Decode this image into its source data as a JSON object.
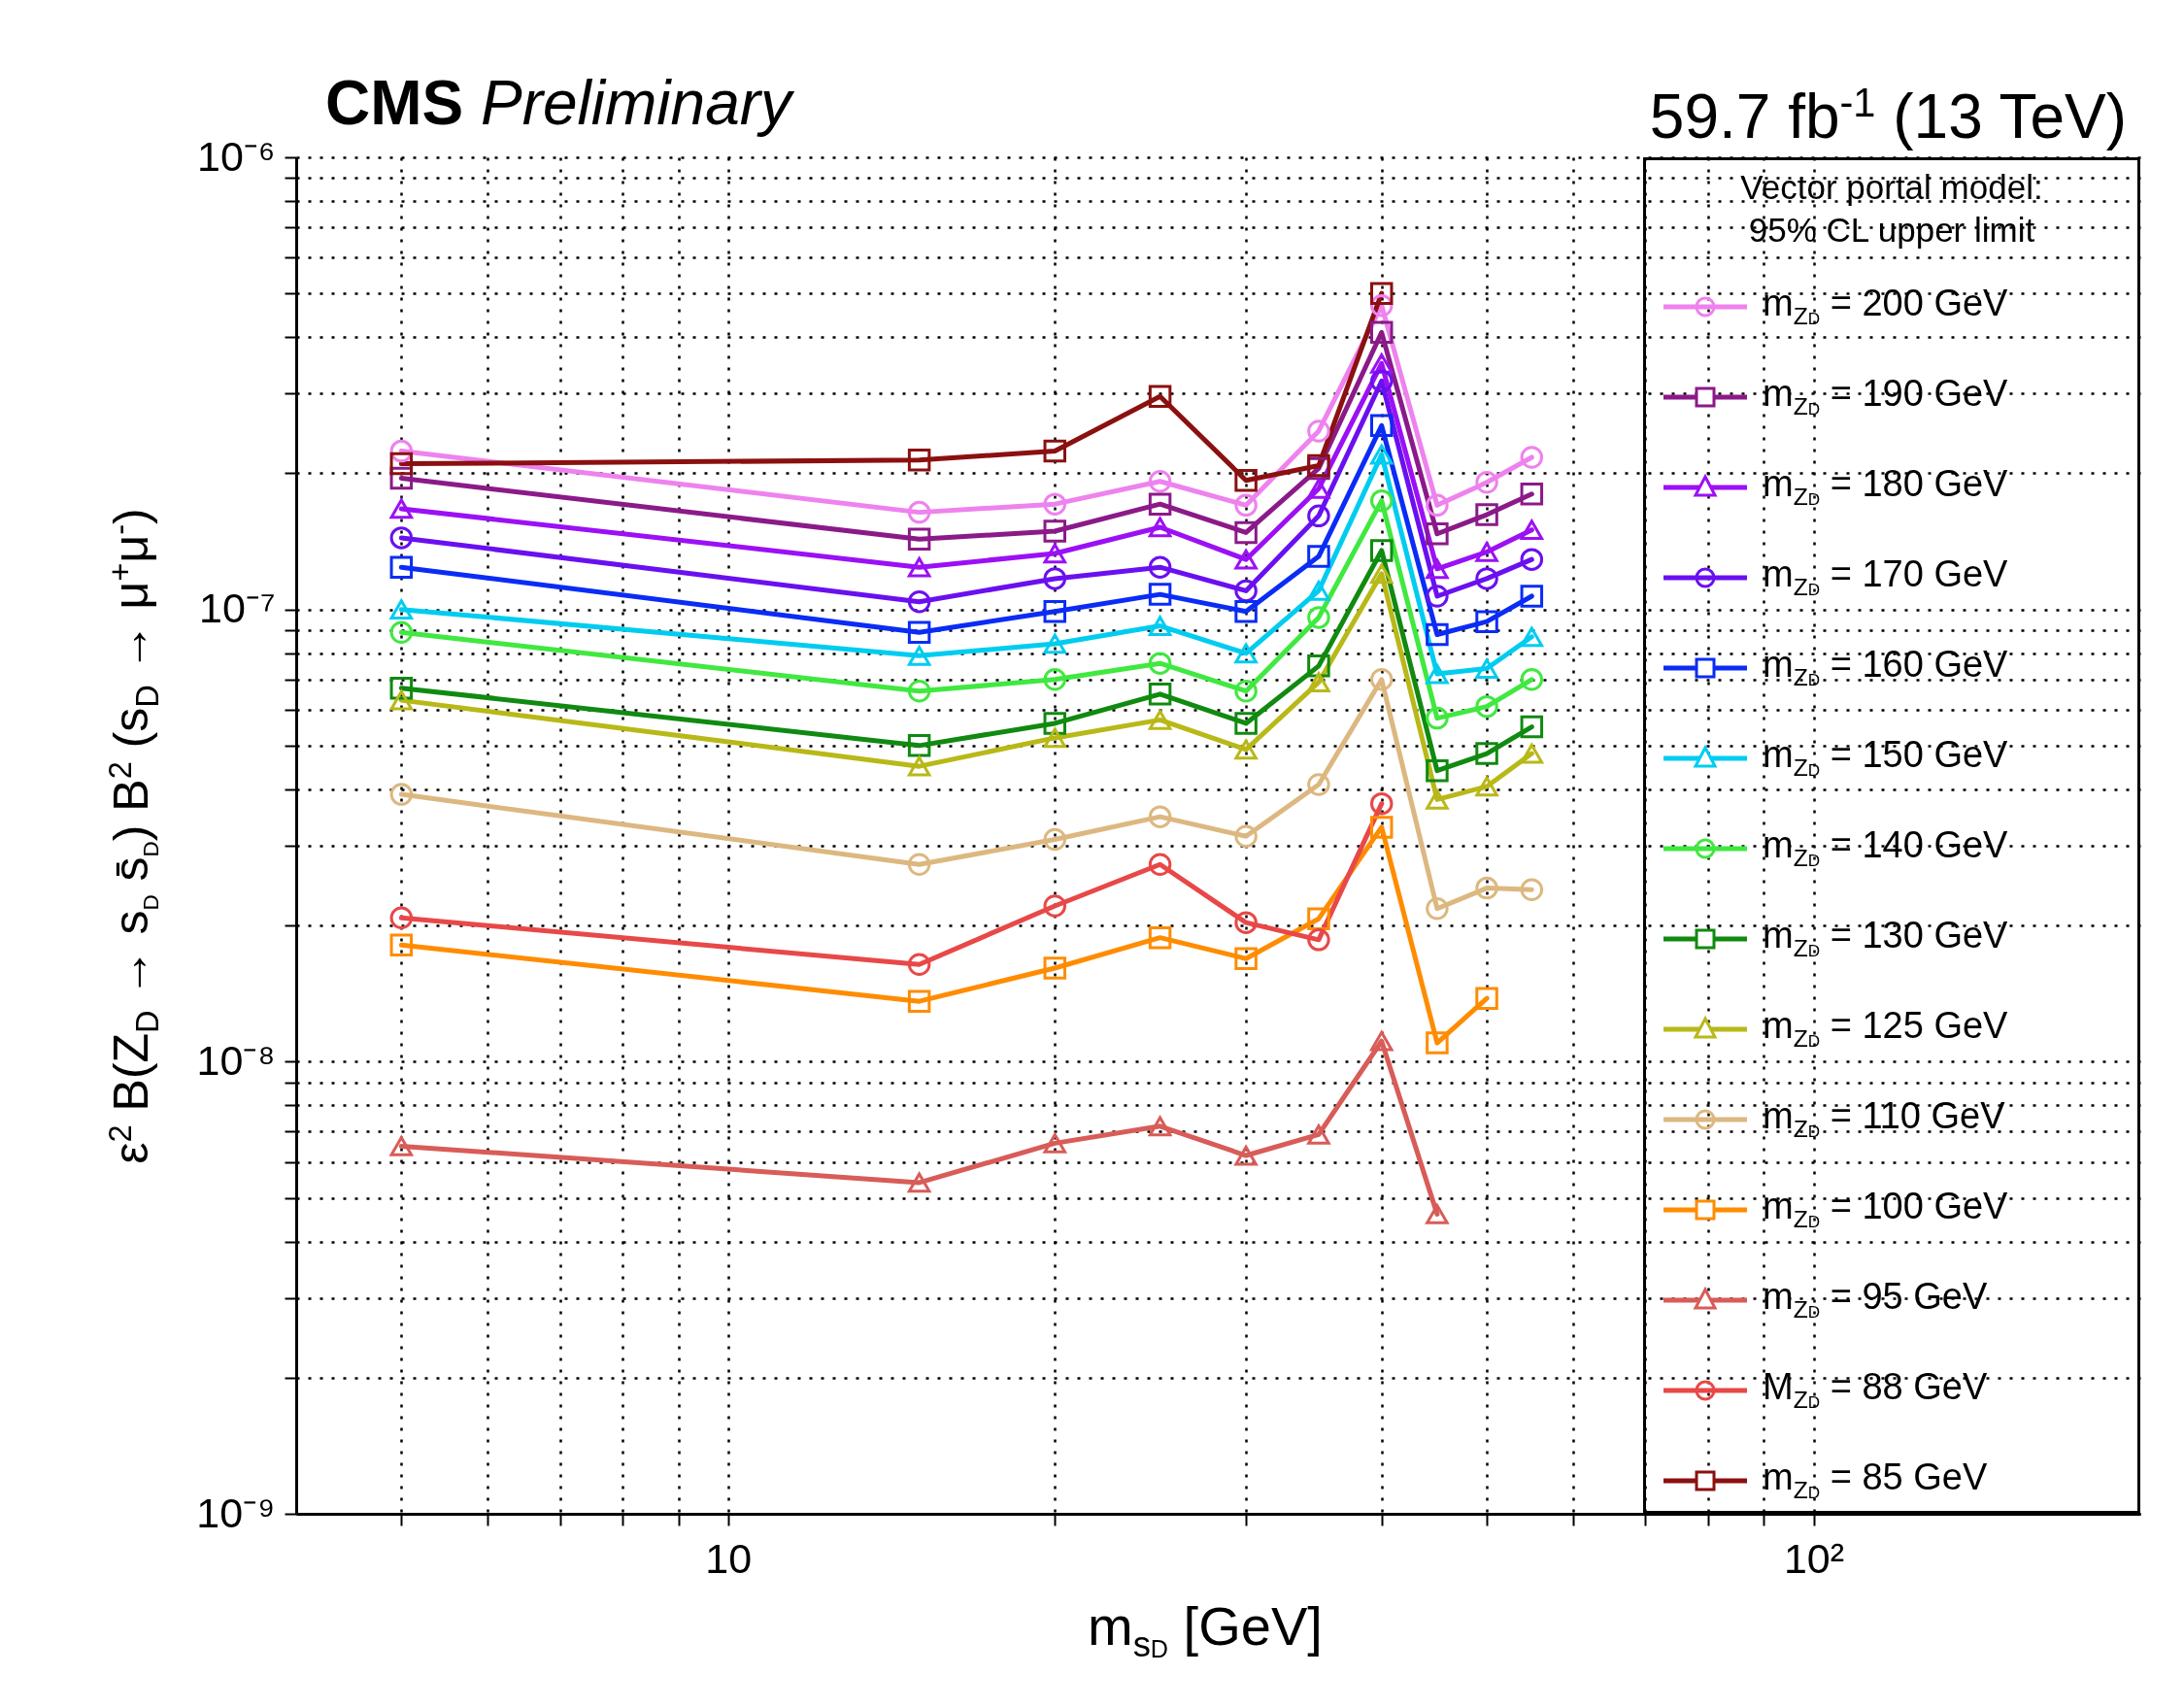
{
  "chart_data": {
    "type": "line",
    "title": "CMS Preliminary",
    "subtitle": "59.7 fb$^{-1}$ (13 TeV)",
    "xlabel": "m$_{s}$$_{D}$ [GeV]",
    "ylabel": "ε$^{2}$ B(Z$_{D}$ → s$_{D}$ s̄$_{D}$) B$^{2}$ (s$_{D}$ → μ$^{+}$μ$^{-}$)",
    "legend_title": "Vector portal model:\n95% CL upper limit",
    "log": "xy",
    "grid": true,
    "legend": "right",
    "x": [
      5,
      15,
      20,
      25,
      30,
      35,
      40,
      45,
      50,
      55
    ],
    "xlim": [
      4,
      200
    ],
    "xticks": [
      {
        "value": 5,
        "label": null
      },
      {
        "value": 6,
        "label": null
      },
      {
        "value": 7,
        "label": null
      },
      {
        "value": 8,
        "label": null
      },
      {
        "value": 9,
        "label": null
      },
      10,
      {
        "value": 20,
        "label": null
      },
      {
        "value": 30,
        "label": null
      },
      {
        "value": 40,
        "label": null
      },
      {
        "value": 50,
        "label": null
      },
      {
        "value": 60,
        "label": null
      },
      {
        "value": 70,
        "label": null
      },
      {
        "value": 80,
        "label": null
      },
      {
        "value": 90,
        "label": null
      },
      {
        "value": 100,
        "label": "10²"
      }
    ],
    "ylim": [
      1e-09,
      1e-06
    ],
    "yticks": [
      {
        "value": 1e-09,
        "label": "10⁻⁹"
      },
      {
        "value": 2e-09,
        "label": null
      },
      {
        "value": 3e-09,
        "label": null
      },
      {
        "value": 4e-09,
        "label": null
      },
      {
        "value": 5e-09,
        "label": null
      },
      {
        "value": 6e-09,
        "label": null
      },
      {
        "value": 7e-09,
        "label": null
      },
      {
        "value": 8e-09,
        "label": null
      },
      {
        "value": 9e-09,
        "label": null
      },
      {
        "value": 1e-08,
        "label": "10⁻⁸"
      },
      {
        "value": 2e-08,
        "label": null
      },
      {
        "value": 3e-08,
        "label": null
      },
      {
        "value": 4e-08,
        "label": null
      },
      {
        "value": 5e-08,
        "label": null
      },
      {
        "value": 6e-08,
        "label": null
      },
      {
        "value": 7e-08,
        "label": null
      },
      {
        "value": 8e-08,
        "label": null
      },
      {
        "value": 9e-08,
        "label": null
      },
      {
        "value": 1e-07,
        "label": "10⁻⁷"
      },
      {
        "value": 2e-07,
        "label": null
      },
      {
        "value": 3e-07,
        "label": null
      },
      {
        "value": 4e-07,
        "label": null
      },
      {
        "value": 5e-07,
        "label": null
      },
      {
        "value": 6e-07,
        "label": null
      },
      {
        "value": 7e-07,
        "label": null
      },
      {
        "value": 8e-07,
        "label": null
      },
      {
        "value": 9e-07,
        "label": null
      },
      {
        "value": 1e-06,
        "label": "10⁻⁶"
      }
    ],
    "series": [
      {
        "name": "m$_{Z}$$_{D}$ = 200 GeV",
        "color": "#ee82ee",
        "marker": "circle",
        "values": [
          2.24e-07,
          1.64e-07,
          1.71e-07,
          1.92e-07,
          1.7e-07,
          2.48e-07,
          4.7e-07,
          1.7e-07,
          1.91e-07,
          2.17e-07
        ]
      },
      {
        "name": "m$_{Z}$$_{D}$ = 190 GeV",
        "color": "#8b1a89",
        "marker": "square",
        "values": [
          1.95e-07,
          1.43e-07,
          1.49e-07,
          1.71e-07,
          1.48e-07,
          2.05e-07,
          4.1e-07,
          1.47e-07,
          1.62e-07,
          1.8e-07
        ]
      },
      {
        "name": "m$_{Z}$$_{D}$ = 180 GeV",
        "color": "#9b10f5",
        "marker": "triangle",
        "values": [
          1.67e-07,
          1.24e-07,
          1.33e-07,
          1.52e-07,
          1.29e-07,
          1.85e-07,
          3.5e-07,
          1.23e-07,
          1.34e-07,
          1.5e-07
        ]
      },
      {
        "name": "m$_{Z}$$_{D}$ = 170 GeV",
        "color": "#6a10f0",
        "marker": "circle",
        "values": [
          1.44e-07,
          1.04e-07,
          1.17e-07,
          1.24e-07,
          1.1e-07,
          1.61e-07,
          3.2e-07,
          1.07e-07,
          1.17e-07,
          1.29e-07
        ]
      },
      {
        "name": "m$_{Z}$$_{D}$ = 160 GeV",
        "color": "#0a2cf5",
        "marker": "square",
        "values": [
          1.24e-07,
          8.9e-08,
          9.9e-08,
          1.08e-07,
          9.9e-08,
          1.31e-07,
          2.55e-07,
          8.8e-08,
          9.4e-08,
          1.07e-07
        ]
      },
      {
        "name": "m$_{Z}$$_{D}$ = 150 GeV",
        "color": "#00ccf0",
        "marker": "triangle",
        "values": [
          1e-07,
          7.9e-08,
          8.4e-08,
          9.2e-08,
          8e-08,
          1.1e-07,
          2.2e-07,
          7.2e-08,
          7.4e-08,
          8.7e-08
        ]
      },
      {
        "name": "m$_{Z}$$_{D}$ = 140 GeV",
        "color": "#40e840",
        "marker": "circle",
        "values": [
          8.9e-08,
          6.6e-08,
          7e-08,
          7.6e-08,
          6.6e-08,
          9.6e-08,
          1.74e-07,
          5.75e-08,
          6.1e-08,
          7e-08
        ]
      },
      {
        "name": "m$_{Z}$$_{D}$ = 130 GeV",
        "color": "#108a10",
        "marker": "square",
        "values": [
          6.7e-08,
          5e-08,
          5.6e-08,
          6.5e-08,
          5.6e-08,
          7.5e-08,
          1.35e-07,
          4.4e-08,
          4.8e-08,
          5.5e-08
        ]
      },
      {
        "name": "m$_{Z}$$_{D}$ = 125 GeV",
        "color": "#b8b818",
        "marker": "triangle",
        "values": [
          6.3e-08,
          4.5e-08,
          5.2e-08,
          5.7e-08,
          4.9e-08,
          6.9e-08,
          1.2e-07,
          3.8e-08,
          4.06e-08,
          4.8e-08
        ]
      },
      {
        "name": "m$_{Z}$$_{D}$ = 110 GeV",
        "color": "#dcb880",
        "marker": "circle",
        "values": [
          3.9e-08,
          2.73e-08,
          3.1e-08,
          3.48e-08,
          3.15e-08,
          4.1e-08,
          7e-08,
          2.18e-08,
          2.42e-08,
          2.4e-08
        ]
      },
      {
        "name": "m$_{Z}$$_{D}$ = 100 GeV",
        "color": "#ff8c00",
        "marker": "square",
        "values": [
          1.81e-08,
          1.36e-08,
          1.61e-08,
          1.88e-08,
          1.69e-08,
          2.07e-08,
          3.3e-08,
          1.1e-08,
          1.38e-08,
          null
        ]
      },
      {
        "name": "m$_{Z}$$_{D}$ = 95 GeV",
        "color": "#d85c58",
        "marker": "triangle",
        "values": [
          6.5e-09,
          5.4e-09,
          6.6e-09,
          7.2e-09,
          6.2e-09,
          6.9e-09,
          1.11e-08,
          4.6e-09,
          null,
          null
        ]
      },
      {
        "name": "M$_{Z}$$_{D}$ = 88 GeV",
        "color": "#e84848",
        "marker": "circle",
        "values": [
          2.08e-08,
          1.64e-08,
          2.21e-08,
          2.73e-08,
          2.03e-08,
          1.86e-08,
          3.72e-08,
          null,
          null,
          null
        ]
      },
      {
        "name": "m$_{Z}$$_{D}$ = 85 GeV",
        "color": "#8b1010",
        "marker": "square",
        "values": [
          2.1e-07,
          2.14e-07,
          2.24e-07,
          2.96e-07,
          1.93e-07,
          2.08e-07,
          5e-07,
          null,
          null,
          null
        ]
      }
    ]
  }
}
